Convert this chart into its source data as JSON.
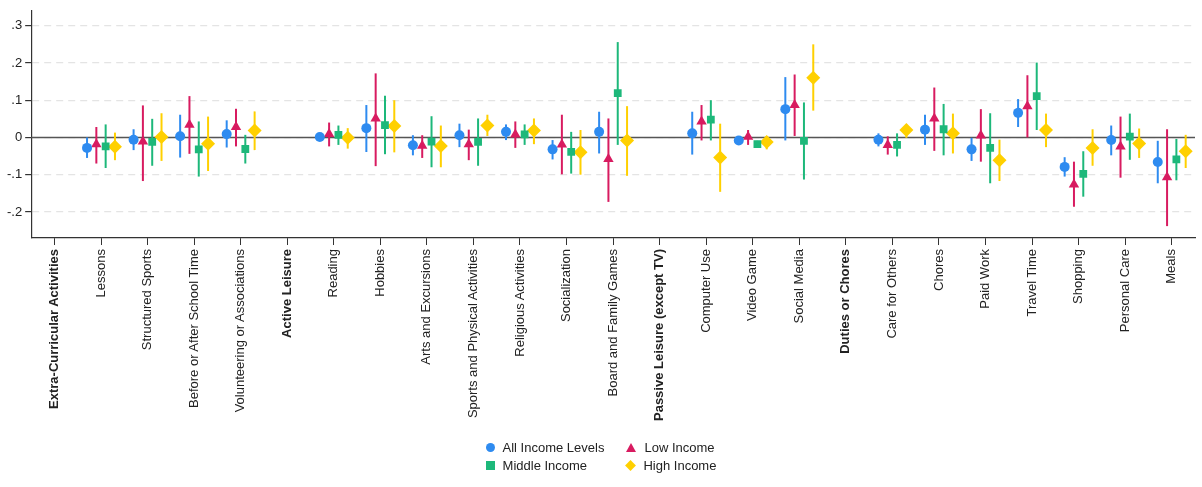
{
  "chart_data": {
    "type": "scatter",
    "categories": [
      "Extra-Curricular Activities",
      "Lessons",
      "Structured Sports",
      "Before or After School Time",
      "Volunteering or Associations",
      "Active Leisure",
      "Reading",
      "Hobbies",
      "Arts and Excursions",
      "Sports and Physical Activities",
      "Religious Activities",
      "Socialization",
      "Board and Family Games",
      "Passive Leisure (except TV)",
      "Computer Use",
      "Video Game",
      "Social Media",
      "Duties or Chores",
      "Care for Others",
      "Chores",
      "Paid Work",
      "Travel Time",
      "Shopping",
      "Personal Care",
      "Meals"
    ],
    "series": [
      {
        "name": "All Income Levels",
        "color": "#2e8bf0",
        "marker": "circle",
        "values": [
          null,
          -0.028,
          -0.006,
          0.003,
          0.009,
          null,
          0.001,
          0.025,
          -0.021,
          0.006,
          0.015,
          -0.032,
          0.015,
          null,
          0.011,
          -0.008,
          0.076,
          null,
          -0.006,
          0.021,
          -0.032,
          0.066,
          -0.079,
          -0.007,
          -0.066
        ],
        "errors": [
          null,
          [
            -0.055,
            0.0
          ],
          [
            -0.034,
            0.022
          ],
          [
            -0.054,
            0.061
          ],
          [
            -0.027,
            0.046
          ],
          null,
          [
            -0.006,
            0.007
          ],
          [
            -0.039,
            0.087
          ],
          [
            -0.048,
            0.006
          ],
          [
            -0.026,
            0.037
          ],
          [
            -0.007,
            0.035
          ],
          [
            -0.059,
            -0.007
          ],
          [
            -0.043,
            0.069
          ],
          null,
          [
            -0.046,
            0.069
          ],
          [
            -0.013,
            -0.003
          ],
          [
            -0.008,
            0.162
          ],
          null,
          [
            -0.024,
            0.011
          ],
          [
            -0.02,
            0.061
          ],
          [
            -0.063,
            -0.001
          ],
          [
            0.028,
            0.103
          ],
          [
            -0.105,
            -0.053
          ],
          [
            -0.048,
            0.032
          ],
          [
            -0.123,
            -0.009
          ]
        ]
      },
      {
        "name": "Low Income",
        "color": "#d81b60",
        "marker": "triangle",
        "values": [
          null,
          -0.018,
          -0.011,
          0.034,
          0.028,
          null,
          0.009,
          0.051,
          -0.022,
          -0.018,
          0.008,
          -0.019,
          -0.058,
          null,
          0.043,
          0.002,
          0.087,
          null,
          -0.02,
          0.051,
          0.005,
          0.084,
          -0.126,
          -0.024,
          -0.107
        ],
        "errors": [
          null,
          [
            -0.07,
            0.028
          ],
          [
            -0.117,
            0.086
          ],
          [
            -0.044,
            0.111
          ],
          [
            -0.024,
            0.077
          ],
          null,
          [
            -0.024,
            0.04
          ],
          [
            -0.077,
            0.172
          ],
          [
            -0.055,
            0.006
          ],
          [
            -0.061,
            0.021
          ],
          [
            -0.028,
            0.043
          ],
          [
            -0.099,
            0.061
          ],
          [
            -0.173,
            0.051
          ],
          null,
          [
            -0.008,
            0.087
          ],
          [
            -0.02,
            0.02
          ],
          [
            0.004,
            0.169
          ],
          null,
          [
            -0.046,
            0.003
          ],
          [
            -0.036,
            0.134
          ],
          [
            -0.065,
            0.076
          ],
          [
            0,
            0.167
          ],
          [
            -0.186,
            -0.065
          ],
          [
            -0.108,
            0.056
          ],
          [
            -0.238,
            0.022
          ]
        ]
      },
      {
        "name": "Middle Income",
        "color": "#1db87a",
        "marker": "square",
        "values": [
          null,
          -0.024,
          -0.012,
          -0.032,
          -0.031,
          null,
          0.007,
          0.033,
          -0.011,
          -0.012,
          0.008,
          -0.039,
          0.119,
          null,
          0.048,
          -0.018,
          -0.009,
          null,
          -0.02,
          0.022,
          -0.028,
          0.111,
          -0.098,
          0.002,
          -0.059
        ],
        "errors": [
          null,
          [
            -0.082,
            0.035
          ],
          [
            -0.076,
            0.05
          ],
          [
            -0.105,
            0.043
          ],
          [
            -0.07,
            0.007
          ],
          null,
          [
            -0.02,
            0.032
          ],
          [
            -0.045,
            0.112
          ],
          [
            -0.08,
            0.057
          ],
          [
            -0.076,
            0.051
          ],
          [
            -0.02,
            0.035
          ],
          [
            -0.097,
            0.015
          ],
          [
            -0.02,
            0.256
          ],
          null,
          [
            -0.008,
            0.1
          ],
          [
            -0.028,
            -0.009
          ],
          [
            -0.113,
            0.094
          ],
          null,
          [
            -0.051,
            0.011
          ],
          [
            -0.048,
            0.09
          ],
          [
            -0.123,
            0.065
          ],
          [
            0.02,
            0.201
          ],
          [
            -0.159,
            -0.037
          ],
          [
            -0.06,
            0.064
          ],
          [
            -0.115,
            -0.004
          ]
        ]
      },
      {
        "name": "High Income",
        "color": "#ffd000",
        "marker": "diamond",
        "values": [
          null,
          -0.025,
          0.001,
          -0.017,
          0.019,
          null,
          -0.001,
          0.031,
          -0.023,
          0.032,
          0.019,
          -0.04,
          -0.008,
          null,
          -0.054,
          -0.012,
          0.16,
          null,
          0.02,
          0.011,
          -0.061,
          0.02,
          -0.028,
          -0.016,
          -0.037
        ],
        "errors": [
          null,
          [
            -0.061,
            0.013
          ],
          [
            -0.063,
            0.065
          ],
          [
            -0.09,
            0.056
          ],
          [
            -0.034,
            0.07
          ],
          null,
          [
            -0.03,
            0.025
          ],
          [
            -0.04,
            0.1
          ],
          [
            -0.08,
            0.032
          ],
          [
            0.004,
            0.061
          ],
          [
            -0.018,
            0.051
          ],
          [
            -0.1,
            0.02
          ],
          [
            -0.103,
            0.084
          ],
          null,
          [
            -0.146,
            0.037
          ],
          [
            -0.032,
            0.004
          ],
          [
            0.072,
            0.25
          ],
          null,
          [
            -0.001,
            0.035
          ],
          [
            -0.043,
            0.064
          ],
          [
            -0.117,
            -0.006
          ],
          [
            -0.026,
            0.064
          ],
          [
            -0.076,
            0.022
          ],
          [
            -0.055,
            0.024
          ],
          [
            -0.082,
            0.007
          ]
        ]
      }
    ],
    "ylim": [
      -0.27,
      0.34
    ],
    "yticks": [
      {
        "value": -0.2,
        "label": "-.2"
      },
      {
        "value": -0.1,
        "label": "-.1"
      },
      0,
      {
        "value": 0.1,
        "label": ".1"
      },
      {
        "value": 0.2,
        "label": ".2"
      },
      {
        "value": 0.3,
        "label": ".3"
      }
    ],
    "ref_lines": [
      {
        "axis": "y",
        "value": 0,
        "color": "#555555"
      }
    ],
    "grid": "y",
    "legend": "bottom"
  }
}
